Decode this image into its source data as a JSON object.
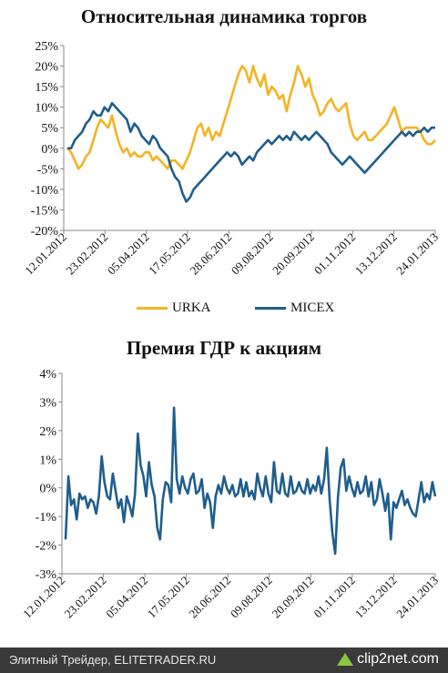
{
  "chart_data": [
    {
      "type": "line",
      "title": "Относительная динамика торгов",
      "ylim": [
        -20,
        25
      ],
      "yticks": [
        "25%",
        "20%",
        "15%",
        "10%",
        "5%",
        "0%",
        "-5%",
        "-10%",
        "-15%",
        "-20%"
      ],
      "x_labels": [
        "12.01.2012",
        "23.02.2012",
        "05.04.2012",
        "17.05.2012",
        "28.06.2012",
        "09.08.2012",
        "20.09.2012",
        "01.11.2012",
        "13.12.2012",
        "24.01.2013"
      ],
      "grid": false,
      "legend_position": "bottom",
      "series": [
        {
          "name": "URKA",
          "color": "#f5b323",
          "values": [
            0,
            -1,
            -3,
            -5,
            -4,
            -2,
            -1,
            2,
            5,
            7,
            6,
            5,
            8,
            4,
            1,
            -1,
            0,
            -2,
            -1,
            -2,
            -2,
            -1,
            -1,
            -3,
            -2,
            -3,
            -4,
            -5,
            -3,
            -3,
            -4,
            -5,
            -3,
            -1,
            2,
            5,
            6,
            3,
            5,
            2,
            4,
            3,
            6,
            9,
            12,
            15,
            18,
            20,
            19,
            16,
            20,
            17,
            15,
            18,
            13,
            15,
            14,
            12,
            13,
            9,
            13,
            16,
            20,
            18,
            15,
            17,
            13,
            11,
            8,
            9,
            11,
            12,
            10,
            9,
            10,
            11,
            6,
            3,
            2,
            3,
            4,
            2,
            2,
            3,
            4,
            5,
            6,
            8,
            10,
            7,
            4,
            5,
            5,
            5,
            5,
            4,
            2,
            1,
            1,
            2
          ]
        },
        {
          "name": "MICEX",
          "color": "#1f5e8c",
          "values": [
            0,
            0,
            2,
            3,
            4,
            6,
            7,
            9,
            8,
            8,
            10,
            9,
            11,
            10,
            9,
            8,
            7,
            4,
            6,
            5,
            3,
            2,
            1,
            3,
            2,
            0,
            -1,
            -2,
            -5,
            -7,
            -8,
            -11,
            -13,
            -12,
            -10,
            -9,
            -8,
            -7,
            -6,
            -5,
            -4,
            -3,
            -2,
            -1,
            -2,
            -1,
            -2,
            -4,
            -3,
            -2,
            -3,
            -1,
            0,
            1,
            2,
            1,
            2,
            3,
            2,
            3,
            2,
            4,
            3,
            2,
            3,
            2,
            3,
            4,
            3,
            2,
            1,
            -1,
            -2,
            -3,
            -4,
            -3,
            -2,
            -3,
            -4,
            -5,
            -6,
            -5,
            -4,
            -3,
            -2,
            -1,
            0,
            1,
            2,
            3,
            4,
            3,
            4,
            3,
            4,
            4,
            5,
            4,
            5,
            5
          ]
        }
      ]
    },
    {
      "type": "line",
      "title": "Премия ГДР к акциям",
      "ylim": [
        -3,
        4
      ],
      "yticks": [
        "4%",
        "3%",
        "2%",
        "1%",
        "0%",
        "-1%",
        "-2%",
        "-3%"
      ],
      "x_labels": [
        "12.01.2012",
        "23.02.2012",
        "05.04.2012",
        "17.05.2012",
        "28.06.2012",
        "09.08.2012",
        "20.09.2012",
        "01.11.2012",
        "13.12.2012",
        "24.01.2013"
      ],
      "grid": false,
      "series": [
        {
          "name": "",
          "color": "#1f5e8c",
          "values": [
            -1.8,
            0.4,
            -0.6,
            -0.4,
            -1.1,
            -0.2,
            -0.4,
            -0.3,
            -0.7,
            -0.4,
            -0.5,
            -0.9,
            -0.3,
            1.1,
            0.2,
            -0.3,
            -0.4,
            0.5,
            -0.1,
            -0.7,
            -0.4,
            -1.2,
            -0.3,
            -0.6,
            -1.0,
            -0.2,
            1.9,
            0.8,
            0.4,
            -0.3,
            0.9,
            0.1,
            -0.3,
            -1.4,
            -1.8,
            -0.4,
            0.2,
            0.1,
            -0.5,
            2.8,
            0.3,
            -0.2,
            0.4,
            0.0,
            -0.2,
            0.3,
            0.5,
            -0.2,
            -0.1,
            0.3,
            -0.7,
            -0.2,
            -0.5,
            -1.4,
            -0.3,
            0.1,
            -0.2,
            0.4,
            0.0,
            -0.2,
            0.1,
            -0.3,
            -0.2,
            0.3,
            -0.3,
            0.2,
            -0.3,
            -0.1,
            -0.4,
            0.5,
            0.0,
            -0.3,
            0.4,
            -0.2,
            -0.5,
            0.9,
            -0.1,
            -0.2,
            0.5,
            -0.2,
            -0.3,
            0.4,
            -0.2,
            -0.1,
            0.2,
            -0.1,
            -0.2,
            0.3,
            -0.2,
            0.1,
            -0.1,
            0.4,
            -0.2,
            0.3,
            1.4,
            -0.4,
            -1.6,
            -2.3,
            -0.3,
            0.7,
            1.0,
            -0.1,
            0.4,
            0.0,
            -0.3,
            0.2,
            -0.2,
            -0.1,
            0.4,
            -0.3,
            0.2,
            -0.6,
            -0.4,
            0.3,
            -0.2,
            -0.8,
            -0.2,
            -1.8,
            -0.5,
            -0.7,
            -0.4,
            -0.1,
            -0.6,
            -0.4,
            -0.7,
            -0.9,
            -1.0,
            -0.4,
            0.2,
            -0.5,
            -0.2,
            -0.4,
            0.2,
            -0.3
          ]
        }
      ]
    }
  ],
  "legend": {
    "urka": "URKA",
    "micex": "MICEX"
  },
  "footer": {
    "source": "Элитный Трейдер, ELITETRADER.RU",
    "logo": "clip2net.com"
  }
}
